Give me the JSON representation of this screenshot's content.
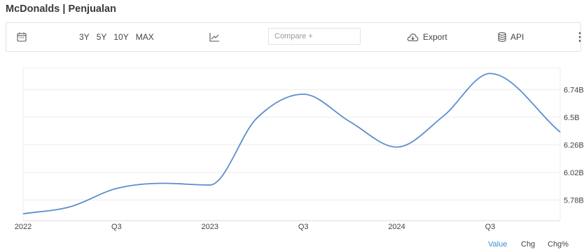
{
  "title": "McDonalds | Penjualan",
  "toolbar": {
    "ranges": [
      "3Y",
      "5Y",
      "10Y",
      "MAX"
    ],
    "compare_placeholder": "Compare +",
    "export_label": "Export",
    "api_label": "API",
    "more_label": "⋮"
  },
  "chart_data": {
    "type": "line",
    "x_ticks": [
      "2022",
      "Q3",
      "2023",
      "Q3",
      "2024",
      "Q3"
    ],
    "y_ticks": [
      "5.78B",
      "6.02B",
      "6.26B",
      "6.5B",
      "6.74B"
    ],
    "y_tick_values": [
      5.78,
      6.02,
      6.26,
      6.5,
      6.74
    ],
    "ylim": [
      5.6,
      6.93
    ],
    "xlim": [
      0,
      11.5
    ],
    "grid": true,
    "line_color": "#5b8ecf",
    "series": [
      {
        "values": [
          {
            "x": 0,
            "y": 5.66
          },
          {
            "x": 1,
            "y": 5.72
          },
          {
            "x": 2,
            "y": 5.88
          },
          {
            "x": 3,
            "y": 5.925
          },
          {
            "x": 4,
            "y": 5.91
          },
          {
            "x": 5,
            "y": 6.49
          },
          {
            "x": 6,
            "y": 6.7
          },
          {
            "x": 7,
            "y": 6.46
          },
          {
            "x": 8,
            "y": 6.24
          },
          {
            "x": 9,
            "y": 6.51
          },
          {
            "x": 10,
            "y": 6.88
          },
          {
            "x": 11.5,
            "y": 6.37
          }
        ]
      }
    ]
  },
  "footer": {
    "value_label": "Value",
    "chg_label": "Chg",
    "chgpct_label": "Chg%"
  }
}
